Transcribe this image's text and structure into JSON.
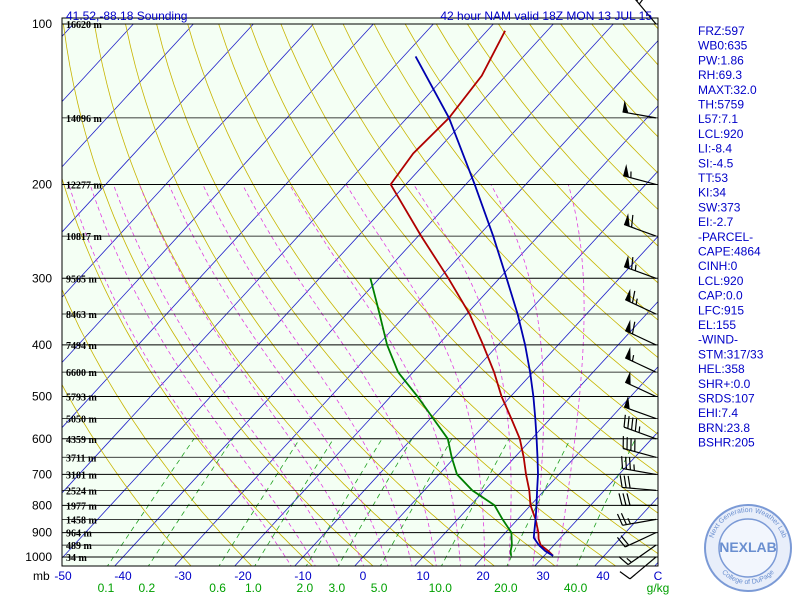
{
  "header": {
    "location": "41.52,-88.18 Sounding",
    "valid": "42 hour NAM valid 18Z MON 13 JUL 15"
  },
  "indices": [
    "FRZ:597",
    "WB0:635",
    "PW:1.86",
    "RH:69.3",
    "MAXT:32.0",
    "TH:5759",
    "L57:7.1",
    "LCL:920",
    "LI:-8.4",
    "SI:-4.5",
    "TT:53",
    "KI:34",
    "SW:373",
    "EI:-2.7",
    "-PARCEL-",
    "CAPE:4864",
    "CINH:0",
    "LCL:920",
    "CAP:0.0",
    "LFC:915",
    "EL:155",
    "-WIND-",
    "STM:317/33",
    "HEL:358",
    "SHR+:0.0",
    "SRDS:107",
    "EHI:7.4",
    "BRN:23.8",
    "BSHR:205"
  ],
  "logo": {
    "text": "NEXLAB",
    "ring_top": "Next Generation Weather Lab",
    "ring_bottom": "College of DuPage"
  },
  "colors": {
    "background": "#f4fff4",
    "temperature": "#b00000",
    "dewpoint": "#008000",
    "parcel": "#0000b0",
    "isotherm": "#2020c8",
    "dry_adiabat": "#c8b400",
    "moist_adiabat": "#e040e0",
    "mixing_ratio": "#20a020"
  },
  "chart_data": {
    "type": "line",
    "chart_kind": "skew-t log-p sounding",
    "x_axis_unit": "C",
    "x_ticks": [
      -50,
      -40,
      -30,
      -20,
      -10,
      0,
      10,
      20,
      30,
      40
    ],
    "x_axis_end_label": "C",
    "y_axis_unit": "mb",
    "y_ticks": [
      100,
      200,
      300,
      400,
      500,
      600,
      700,
      800,
      900,
      1000
    ],
    "pressure_range": [
      100,
      1050
    ],
    "mixing_ratio_unit": "g/kg",
    "mixing_ratio_labels": [
      "0.1",
      "0.2",
      "0.6",
      "1.0",
      "2.0",
      "3.0",
      "5.0",
      "10.0",
      "20.0",
      "40.0"
    ],
    "height_levels": [
      {
        "p": 100,
        "label": "16620 m"
      },
      {
        "p": 150,
        "label": "14096 m"
      },
      {
        "p": 200,
        "label": "12277 m"
      },
      {
        "p": 250,
        "label": "10817 m"
      },
      {
        "p": 300,
        "label": "9565 m"
      },
      {
        "p": 350,
        "label": "8463 m"
      },
      {
        "p": 400,
        "label": "7494 m"
      },
      {
        "p": 450,
        "label": "6600 m"
      },
      {
        "p": 500,
        "label": "5793 m"
      },
      {
        "p": 550,
        "label": "5050 m"
      },
      {
        "p": 600,
        "label": "4359 m"
      },
      {
        "p": 650,
        "label": "3711 m"
      },
      {
        "p": 700,
        "label": "3101 m"
      },
      {
        "p": 750,
        "label": "2524 m"
      },
      {
        "p": 800,
        "label": "1977 m"
      },
      {
        "p": 850,
        "label": "1458 m"
      },
      {
        "p": 900,
        "label": "964 m"
      },
      {
        "p": 950,
        "label": "489 m"
      },
      {
        "p": 1000,
        "label": "34 m"
      }
    ],
    "series": [
      {
        "key": "temperature",
        "points": [
          [
            995,
            31.5
          ],
          [
            975,
            30.0
          ],
          [
            950,
            27.8
          ],
          [
            925,
            26.5
          ],
          [
            900,
            25.5
          ],
          [
            850,
            23.0
          ],
          [
            800,
            20.0
          ],
          [
            750,
            17.5
          ],
          [
            700,
            14.5
          ],
          [
            650,
            11.5
          ],
          [
            600,
            8.0
          ],
          [
            550,
            3.5
          ],
          [
            500,
            -1.5
          ],
          [
            450,
            -6.5
          ],
          [
            400,
            -12.5
          ],
          [
            350,
            -19.5
          ],
          [
            300,
            -28.5
          ],
          [
            250,
            -39.5
          ],
          [
            200,
            -52.5
          ],
          [
            175,
            -53.5
          ],
          [
            150,
            -53.0
          ],
          [
            125,
            -54.0
          ],
          [
            103,
            -57.0
          ]
        ]
      },
      {
        "key": "dewpoint",
        "points": [
          [
            995,
            24.5
          ],
          [
            975,
            23.7
          ],
          [
            950,
            23.0
          ],
          [
            925,
            22.0
          ],
          [
            900,
            21.0
          ],
          [
            850,
            17.5
          ],
          [
            800,
            14.0
          ],
          [
            750,
            8.0
          ],
          [
            700,
            3.0
          ],
          [
            650,
            -0.5
          ],
          [
            600,
            -4.0
          ],
          [
            550,
            -9.5
          ],
          [
            500,
            -15.5
          ],
          [
            450,
            -22.5
          ],
          [
            400,
            -28.5
          ],
          [
            350,
            -34.5
          ],
          [
            300,
            -41.5
          ]
        ]
      },
      {
        "key": "parcel",
        "points": [
          [
            995,
            31.5
          ],
          [
            975,
            29.5
          ],
          [
            950,
            27.5
          ],
          [
            920,
            25.5
          ],
          [
            900,
            24.8
          ],
          [
            850,
            23.0
          ],
          [
            800,
            21.0
          ],
          [
            750,
            18.8
          ],
          [
            700,
            16.5
          ],
          [
            650,
            13.8
          ],
          [
            600,
            10.8
          ],
          [
            550,
            7.5
          ],
          [
            500,
            3.8
          ],
          [
            450,
            -0.5
          ],
          [
            400,
            -5.5
          ],
          [
            350,
            -11.5
          ],
          [
            300,
            -18.8
          ],
          [
            250,
            -27.5
          ],
          [
            200,
            -38.5
          ],
          [
            150,
            -53.0
          ],
          [
            115,
            -68.0
          ]
        ]
      }
    ],
    "wind_barbs": [
      {
        "p": 1000,
        "dir": 230,
        "spd": 10
      },
      {
        "p": 950,
        "dir": 235,
        "spd": 15
      },
      {
        "p": 900,
        "dir": 245,
        "spd": 20
      },
      {
        "p": 850,
        "dir": 260,
        "spd": 25
      },
      {
        "p": 800,
        "dir": 270,
        "spd": 30
      },
      {
        "p": 750,
        "dir": 275,
        "spd": 30
      },
      {
        "p": 700,
        "dir": 280,
        "spd": 35
      },
      {
        "p": 650,
        "dir": 285,
        "spd": 40
      },
      {
        "p": 600,
        "dir": 290,
        "spd": 45
      },
      {
        "p": 550,
        "dir": 290,
        "spd": 50
      },
      {
        "p": 500,
        "dir": 295,
        "spd": 50
      },
      {
        "p": 450,
        "dir": 295,
        "spd": 55
      },
      {
        "p": 400,
        "dir": 295,
        "spd": 60
      },
      {
        "p": 350,
        "dir": 295,
        "spd": 65
      },
      {
        "p": 300,
        "dir": 290,
        "spd": 65
      },
      {
        "p": 250,
        "dir": 290,
        "spd": 60
      },
      {
        "p": 200,
        "dir": 285,
        "spd": 55
      },
      {
        "p": 150,
        "dir": 280,
        "spd": 50
      },
      {
        "p": 100,
        "dir": 320,
        "spd": 25
      }
    ]
  }
}
